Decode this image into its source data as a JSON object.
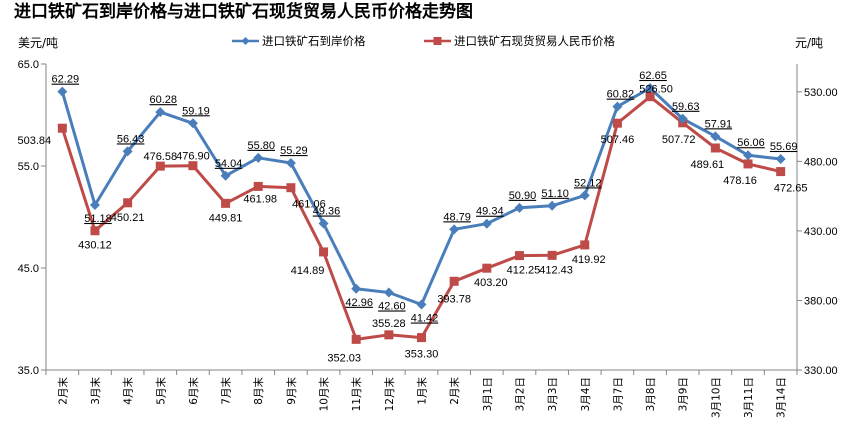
{
  "chart_data": {
    "type": "line",
    "title": "进口铁矿石到岸价格与进口铁矿石现货贸易人民币价格走势图",
    "left_unit": "美元/吨",
    "right_unit": "元/吨",
    "categories": [
      "2月末",
      "3月末",
      "4月末",
      "5月末",
      "6月末",
      "7月末",
      "8月末",
      "9月末",
      "10月末",
      "11月末",
      "12月末",
      "1月末",
      "2月末",
      "3月1日",
      "3月2日",
      "3月3日",
      "3月4日",
      "3月7日",
      "3月8日",
      "3月9日",
      "3月10日",
      "3月11日",
      "3月14日"
    ],
    "left_axis": {
      "min": 35.0,
      "max": 65.0,
      "ticks": [
        "65.0",
        "55.0",
        "45.0",
        "35.0"
      ],
      "tick_values": [
        65,
        55,
        45,
        35
      ]
    },
    "right_axis": {
      "min": 330,
      "max": 550,
      "ticks": [
        "530.00",
        "480.00",
        "430.00",
        "380.00",
        "330.00"
      ],
      "tick_values": [
        530,
        480,
        430,
        380,
        330
      ]
    },
    "legend_position": "top-center",
    "grid": false,
    "series": [
      {
        "name": "进口铁矿石到岸价格",
        "axis": "left",
        "color": "#4a7ebb",
        "marker": "diamond",
        "values": [
          62.29,
          51.18,
          56.43,
          60.28,
          59.19,
          54.04,
          55.8,
          55.29,
          49.36,
          42.96,
          42.6,
          41.42,
          48.79,
          49.34,
          50.9,
          51.1,
          52.12,
          60.82,
          62.65,
          59.63,
          57.91,
          56.06,
          55.69
        ],
        "labels": [
          "62.29",
          "51.18",
          "56.43",
          "60.28",
          "59.19",
          "54.04",
          "55.80",
          "55.29",
          "49.36",
          "42.96",
          "42.60",
          "41.42",
          "48.79",
          "49.34",
          "50.90",
          "51.10",
          "52.12",
          "60.82",
          "62.65",
          "59.63",
          "57.91",
          "56.06",
          "55.69"
        ]
      },
      {
        "name": "进口铁矿石现货贸易人民币价格",
        "axis": "right",
        "color": "#be4b48",
        "marker": "square",
        "values": [
          503.84,
          430.12,
          450.21,
          476.58,
          476.9,
          449.81,
          461.98,
          461.06,
          414.89,
          352.03,
          355.28,
          353.3,
          393.78,
          403.2,
          412.25,
          412.43,
          419.92,
          507.46,
          526.5,
          507.72,
          489.61,
          478.16,
          472.65
        ],
        "labels": [
          "503.84",
          "430.12",
          "450.21",
          "476.58",
          "476.90",
          "449.81",
          "461.98",
          "461.06",
          "414.89",
          "352.03",
          "355.28",
          "353.30",
          "393.78",
          "403.20",
          "412.25",
          "412.43",
          "419.92",
          "507.46",
          "526.50",
          "507.72",
          "489.61",
          "478.16",
          "472.65"
        ]
      }
    ]
  }
}
